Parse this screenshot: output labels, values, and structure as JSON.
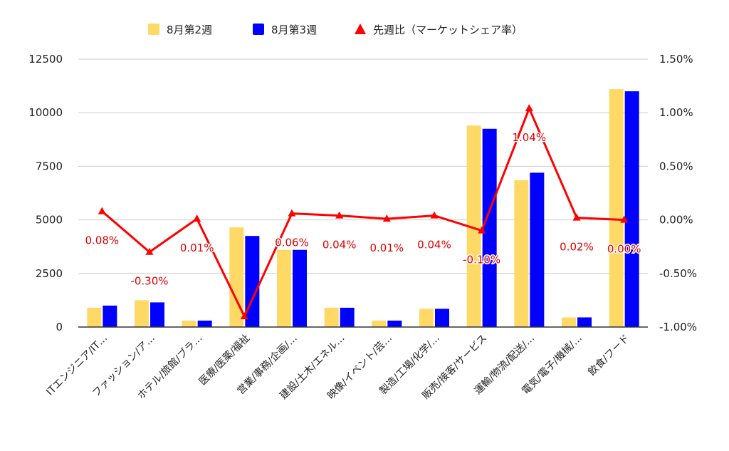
{
  "chart_data": {
    "type": "bar",
    "categories": [
      "ITエンジニア/IT…",
      "ファッション/ア…",
      "ホテル/旅館/ブラ…",
      "医療/医薬/福祉",
      "営業/事務/企画/…",
      "建設/土木/エネル…",
      "映像/イベント/芸…",
      "製造/工場/化学/…",
      "販売/接客/サービス",
      "運輸/物流/配送/…",
      "電気/電子/機械/…",
      "飲食/フード"
    ],
    "series": [
      {
        "name": "8月第2週",
        "axis": "left",
        "type": "bar",
        "color": "#ffd966",
        "values": [
          900,
          1250,
          300,
          4650,
          3600,
          900,
          300,
          850,
          9400,
          6850,
          450,
          11100
        ]
      },
      {
        "name": "8月第3週",
        "axis": "left",
        "type": "bar",
        "color": "#0000ff",
        "values": [
          1000,
          1150,
          300,
          4250,
          3600,
          900,
          300,
          850,
          9250,
          7200,
          450,
          11000
        ]
      },
      {
        "name": "先週比（マーケットシェア率）",
        "axis": "right",
        "type": "line",
        "color": "#ff0000",
        "values": [
          0.08,
          -0.3,
          0.01,
          -0.9,
          0.06,
          0.04,
          0.01,
          0.04,
          -0.1,
          1.04,
          0.02,
          0.0
        ],
        "data_labels": [
          "0.08%",
          "-0.30%",
          "0.01%",
          "",
          "0.06%",
          "0.04%",
          "0.01%",
          "0.04%",
          "-0.10%",
          "1.04%",
          "0.02%",
          "0.00%"
        ]
      }
    ],
    "y_left": {
      "ylim": [
        0,
        12500
      ],
      "ticks": [
        "0",
        "2500",
        "5000",
        "7500",
        "10000",
        "12500"
      ]
    },
    "y_right": {
      "ylim": [
        -1.0,
        1.5
      ],
      "ticks": [
        "-1.00%",
        "-0.50%",
        "0.00%",
        "0.50%",
        "1.00%",
        "1.50%"
      ]
    },
    "grid": true,
    "legend_position": "top-center"
  }
}
